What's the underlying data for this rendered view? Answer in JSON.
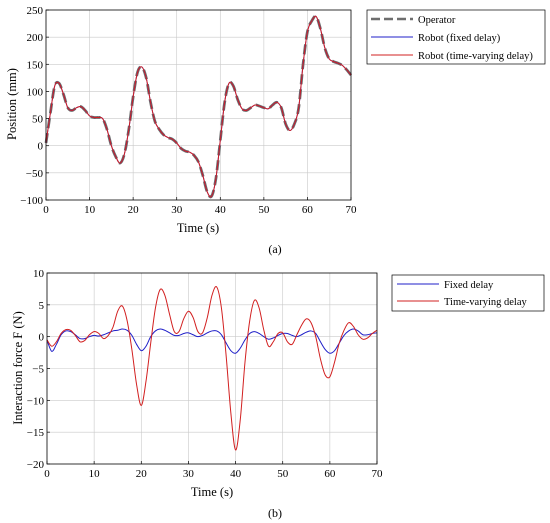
{
  "chart_data": [
    {
      "type": "line",
      "subfigure_label": "(a)",
      "xlabel": "Time (s)",
      "ylabel": "Position (mm)",
      "xlim": [
        0,
        70
      ],
      "ylim": [
        -100,
        250
      ],
      "xticks": [
        0,
        10,
        20,
        30,
        40,
        50,
        60,
        70
      ],
      "yticks": [
        -100,
        -50,
        0,
        50,
        100,
        150,
        200,
        250
      ],
      "grid": true,
      "legend_position": "outside-top-right",
      "x": [
        0,
        1,
        2,
        3,
        4,
        5,
        6,
        7,
        8,
        9,
        10,
        11,
        12,
        13,
        14,
        15,
        16,
        17,
        18,
        19,
        20,
        21,
        22,
        23,
        24,
        25,
        26,
        27,
        28,
        29,
        30,
        31,
        32,
        33,
        34,
        35,
        36,
        37,
        38,
        39,
        40,
        41,
        42,
        43,
        44,
        45,
        46,
        47,
        48,
        49,
        50,
        51,
        52,
        53,
        54,
        55,
        56,
        57,
        58,
        59,
        60,
        61,
        62,
        63,
        64,
        65,
        66,
        67,
        68,
        69,
        70
      ],
      "series": [
        {
          "name": "Operator",
          "color": "#6e6e6e",
          "style": "dashed",
          "values": [
            5,
            60,
            110,
            115,
            95,
            70,
            65,
            70,
            72,
            65,
            55,
            52,
            52,
            50,
            30,
            0,
            -20,
            -32,
            -15,
            30,
            90,
            135,
            145,
            125,
            80,
            45,
            30,
            20,
            15,
            12,
            5,
            -5,
            -10,
            -12,
            -18,
            -30,
            -55,
            -85,
            -93,
            -60,
            10,
            80,
            115,
            110,
            85,
            68,
            65,
            70,
            75,
            73,
            70,
            68,
            75,
            80,
            70,
            40,
            28,
            40,
            70,
            150,
            210,
            230,
            238,
            215,
            180,
            160,
            155,
            152,
            148,
            140,
            130
          ]
        },
        {
          "name": "Robot (fixed delay)",
          "color": "#1f1fc8",
          "style": "solid",
          "values": [
            5,
            60,
            110,
            115,
            95,
            70,
            65,
            70,
            72,
            65,
            55,
            52,
            52,
            50,
            30,
            0,
            -20,
            -32,
            -15,
            30,
            90,
            135,
            145,
            125,
            80,
            45,
            30,
            20,
            15,
            12,
            5,
            -5,
            -10,
            -12,
            -18,
            -30,
            -55,
            -85,
            -93,
            -60,
            10,
            80,
            115,
            110,
            85,
            68,
            65,
            70,
            75,
            73,
            70,
            68,
            75,
            80,
            70,
            40,
            28,
            40,
            70,
            150,
            210,
            230,
            238,
            215,
            180,
            160,
            155,
            152,
            148,
            140,
            130
          ]
        },
        {
          "name": "Robot (time-varying delay)",
          "color": "#d22020",
          "style": "solid",
          "values": [
            5,
            60,
            110,
            115,
            95,
            70,
            65,
            70,
            72,
            65,
            55,
            52,
            52,
            50,
            30,
            0,
            -20,
            -32,
            -15,
            30,
            90,
            135,
            145,
            125,
            80,
            45,
            30,
            20,
            15,
            12,
            5,
            -5,
            -10,
            -12,
            -18,
            -30,
            -55,
            -85,
            -93,
            -60,
            10,
            80,
            115,
            110,
            85,
            68,
            65,
            70,
            75,
            73,
            70,
            68,
            75,
            80,
            70,
            40,
            28,
            40,
            70,
            150,
            210,
            230,
            238,
            215,
            180,
            160,
            155,
            152,
            148,
            140,
            130
          ]
        }
      ]
    },
    {
      "type": "line",
      "subfigure_label": "(b)",
      "xlabel": "Time (s)",
      "ylabel": "Interaction force F (N)",
      "xlim": [
        0,
        70
      ],
      "ylim": [
        -20,
        10
      ],
      "xticks": [
        0,
        10,
        20,
        30,
        40,
        50,
        60,
        70
      ],
      "yticks": [
        -20,
        -15,
        -10,
        -5,
        0,
        5,
        10
      ],
      "grid": true,
      "legend_position": "outside-top-right",
      "x": [
        0,
        1,
        2,
        3,
        4,
        5,
        6,
        7,
        8,
        9,
        10,
        11,
        12,
        13,
        14,
        15,
        16,
        17,
        18,
        19,
        20,
        21,
        22,
        23,
        24,
        25,
        26,
        27,
        28,
        29,
        30,
        31,
        32,
        33,
        34,
        35,
        36,
        37,
        38,
        39,
        40,
        41,
        42,
        43,
        44,
        45,
        46,
        47,
        48,
        49,
        50,
        51,
        52,
        53,
        54,
        55,
        56,
        57,
        58,
        59,
        60,
        61,
        62,
        63,
        64,
        65,
        66,
        67,
        68,
        69,
        70
      ],
      "series": [
        {
          "name": "Fixed delay",
          "color": "#1f1fc8",
          "style": "solid",
          "values": [
            -0.5,
            -2.3,
            -1.2,
            0.3,
            0.9,
            0.8,
            0.3,
            -0.3,
            -0.3,
            0,
            0.2,
            0.1,
            0.3,
            0.6,
            0.9,
            1.0,
            1.2,
            1.0,
            0.2,
            -1.2,
            -2.2,
            -1.5,
            0,
            0.9,
            1.2,
            1.0,
            0.6,
            0.2,
            0.2,
            0.5,
            0.6,
            0.3,
            0,
            0.2,
            0.6,
            0.9,
            0.9,
            0.3,
            -1.0,
            -2.2,
            -2.6,
            -1.8,
            -0.5,
            0.5,
            0.8,
            0.5,
            0,
            -0.4,
            -0.2,
            0.2,
            0.5,
            0.5,
            0.2,
            0,
            0.3,
            0.7,
            0.9,
            0.5,
            -0.8,
            -2.0,
            -2.6,
            -2.2,
            -1.0,
            0.2,
            0.9,
            1.2,
            0.9,
            0.3,
            0.3,
            0.5,
            0.6
          ]
        },
        {
          "name": "Time-varying delay",
          "color": "#d22020",
          "style": "solid",
          "values": [
            -0.5,
            -1.5,
            -0.8,
            0.5,
            1.1,
            1.0,
            0.2,
            -0.8,
            -0.6,
            0.3,
            0.8,
            0.5,
            -0.3,
            0.2,
            1.5,
            4.0,
            4.8,
            2.5,
            -2.0,
            -7.5,
            -10.8,
            -7.0,
            -1.0,
            4.5,
            7.4,
            6.5,
            3.5,
            0.8,
            0.8,
            2.8,
            4.0,
            3.0,
            0.8,
            0.6,
            3.0,
            6.5,
            7.8,
            4.5,
            -3.0,
            -12.0,
            -17.8,
            -13.0,
            -4.0,
            2.5,
            5.7,
            4.5,
            1.0,
            -1.5,
            -0.8,
            0.5,
            0.6,
            -0.8,
            -1.2,
            0.3,
            1.8,
            2.8,
            2.2,
            0,
            -3.5,
            -6.0,
            -6.3,
            -4.0,
            -1.0,
            1.0,
            2.2,
            1.6,
            0.3,
            -0.4,
            -0.2,
            0.5,
            1.0
          ]
        }
      ]
    }
  ]
}
